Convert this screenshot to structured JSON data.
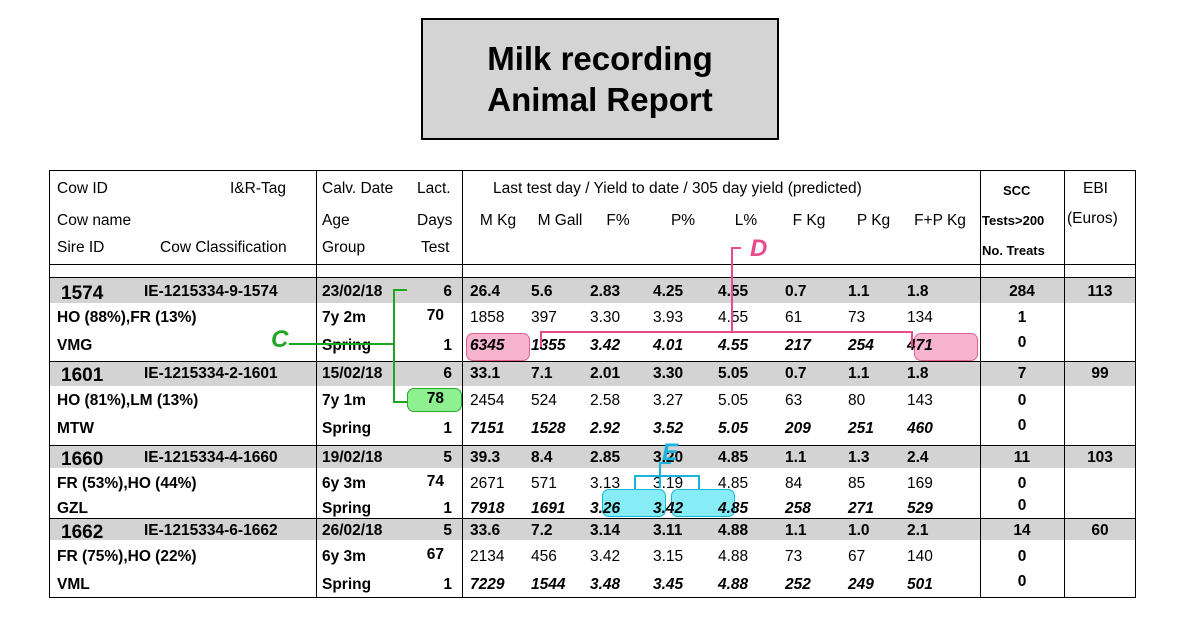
{
  "title": {
    "line1": "Milk recording",
    "line2": "Animal Report"
  },
  "header": {
    "cow_id": "Cow ID",
    "ir_tag": "I&R-Tag",
    "cow_name": "Cow name",
    "sire_id": "Sire ID",
    "cow_classification": "Cow Classification",
    "calv_date": "Calv. Date",
    "age": "Age",
    "group": "Group",
    "lact": "Lact.",
    "days": "Days",
    "test": "Test",
    "yield_title": "Last test day / Yield to date / 305 day yield (predicted)",
    "cols": [
      "M Kg",
      "M Gall",
      "F%",
      "P%",
      "L%",
      "F Kg",
      "P Kg",
      "F+P Kg"
    ],
    "scc": "SCC",
    "tests200": "Tests>200",
    "no_treats": "No. Treats",
    "ebi": "EBI",
    "euros": "(Euros)"
  },
  "cows": [
    {
      "id": "1574",
      "tag": "IE-1215334-9-1574",
      "breed": "HO (88%),FR (13%)",
      "sire": "VMG",
      "calv": "23/02/18",
      "age": "7y 2m",
      "group": "Spring",
      "lact": "6",
      "days": "70",
      "test": "1",
      "last": [
        "26.4",
        "5.6",
        "2.83",
        "4.25",
        "4.55",
        "0.7",
        "1.1",
        "1.8"
      ],
      "ytd": [
        "1858",
        "397",
        "3.30",
        "3.93",
        "4.55",
        "61",
        "73",
        "134"
      ],
      "pred": [
        "6345",
        "1355",
        "3.42",
        "4.01",
        "4.55",
        "217",
        "254",
        "471"
      ],
      "scc": "284",
      "tests200": "1",
      "treats": "0",
      "ebi": "113"
    },
    {
      "id": "1601",
      "tag": "IE-1215334-2-1601",
      "breed": "HO (81%),LM (13%)",
      "sire": "MTW",
      "calv": "15/02/18",
      "age": "7y 1m",
      "group": "Spring",
      "lact": "6",
      "days": "78",
      "test": "1",
      "last": [
        "33.1",
        "7.1",
        "2.01",
        "3.30",
        "5.05",
        "0.7",
        "1.1",
        "1.8"
      ],
      "ytd": [
        "2454",
        "524",
        "2.58",
        "3.27",
        "5.05",
        "63",
        "80",
        "143"
      ],
      "pred": [
        "7151",
        "1528",
        "2.92",
        "3.52",
        "5.05",
        "209",
        "251",
        "460"
      ],
      "scc": "7",
      "tests200": "0",
      "treats": "0",
      "ebi": "99"
    },
    {
      "id": "1660",
      "tag": "IE-1215334-4-1660",
      "breed": "FR (53%),HO (44%)",
      "sire": "GZL",
      "calv": "19/02/18",
      "age": "6y 3m",
      "group": "Spring",
      "lact": "5",
      "days": "74",
      "test": "1",
      "last": [
        "39.3",
        "8.4",
        "2.85",
        "3.20",
        "4.85",
        "1.1",
        "1.3",
        "2.4"
      ],
      "ytd": [
        "2671",
        "571",
        "3.13",
        "3.19",
        "4.85",
        "84",
        "85",
        "169"
      ],
      "pred": [
        "7918",
        "1691",
        "3.26",
        "3.42",
        "4.85",
        "258",
        "271",
        "529"
      ],
      "scc": "11",
      "tests200": "0",
      "treats": "0",
      "ebi": "103"
    },
    {
      "id": "1662",
      "tag": "IE-1215334-6-1662",
      "breed": "FR (75%),HO (22%)",
      "sire": "VML",
      "calv": "26/02/18",
      "age": "6y 3m",
      "group": "Spring",
      "lact": "5",
      "days": "67",
      "test": "1",
      "last": [
        "33.6",
        "7.2",
        "3.14",
        "3.11",
        "4.88",
        "1.1",
        "1.0",
        "2.1"
      ],
      "ytd": [
        "2134",
        "456",
        "3.42",
        "3.15",
        "4.88",
        "73",
        "67",
        "140"
      ],
      "pred": [
        "7229",
        "1544",
        "3.48",
        "3.45",
        "4.88",
        "252",
        "249",
        "501"
      ],
      "scc": "14",
      "tests200": "0",
      "treats": "0",
      "ebi": "60"
    }
  ],
  "annotations": {
    "c": "C",
    "d": "D",
    "e": "E",
    "c_color": "#1fa51f",
    "d_color": "#e64c8c",
    "e_color": "#19b3dc"
  }
}
